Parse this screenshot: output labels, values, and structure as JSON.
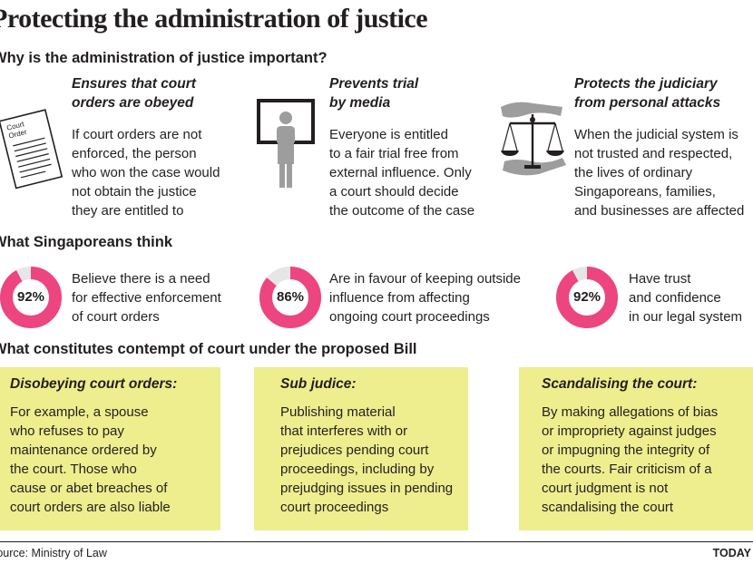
{
  "title": "Protecting the administration of justice",
  "sections": {
    "why": "Why is the administration of justice important?",
    "think": "What Singaporeans think",
    "contempt": "What constitutes contempt of court under the proposed Bill"
  },
  "reasons": [
    {
      "icon": "court-order-document-icon",
      "icon_label": "Court Order",
      "heading": [
        "Ensures that court",
        "orders are obeyed"
      ],
      "body": [
        "If court orders are not",
        "enforced, the person",
        "who won the case would",
        "not obtain the justice",
        "they are entitled to"
      ]
    },
    {
      "icon": "person-on-tv-icon",
      "heading": [
        "Prevents trial",
        "by media"
      ],
      "body": [
        "Everyone is entitled",
        "to a fair trial free from",
        "external influence. Only",
        "a court should decide",
        "the outcome of the case"
      ]
    },
    {
      "icon": "scales-of-justice-hands-icon",
      "heading": [
        "Protects the judiciary",
        "from personal attacks"
      ],
      "body": [
        "When the judicial system is",
        "not trusted and respected,",
        "the lives of ordinary",
        "Singaporeans, families,",
        "and businesses are affected"
      ]
    }
  ],
  "survey": [
    {
      "percent_label": "92%",
      "value": 0.92,
      "text": [
        "Believe there is a need",
        "for effective enforcement",
        "of court orders"
      ]
    },
    {
      "percent_label": "86%",
      "value": 0.86,
      "text": [
        "Are in favour of keeping outside",
        "influence from affecting",
        "ongoing court proceedings"
      ]
    },
    {
      "percent_label": "92%",
      "value": 0.92,
      "text": [
        "Have trust",
        "and confidence",
        "in our legal system"
      ]
    }
  ],
  "contempt_types": [
    {
      "heading": "Disobeying court orders:",
      "body": [
        "For example, a spouse",
        "who refuses to pay",
        "maintenance ordered by",
        "the court. Those who",
        "cause or abet breaches of",
        "court orders are also liable"
      ]
    },
    {
      "heading": "Sub judice:",
      "body": [
        "Publishing material",
        "that interferes with or",
        "prejudices pending court",
        "proceedings, including by",
        "prejudging issues in pending",
        "court proceedings"
      ]
    },
    {
      "heading": "Scandalising the court:",
      "body": [
        "By making allegations of bias",
        "or impropriety against judges",
        "or impugning the integrity of",
        "the courts. Fair criticism of a",
        "court judgment is not",
        "scandalising the court"
      ]
    }
  ],
  "footer": {
    "source": "Source: Ministry of Law",
    "brand": "TODAY"
  },
  "colors": {
    "donut": "#ec4580",
    "donut_track": "#e6e6e6",
    "box": "#eeee8e",
    "text": "#231f20"
  }
}
